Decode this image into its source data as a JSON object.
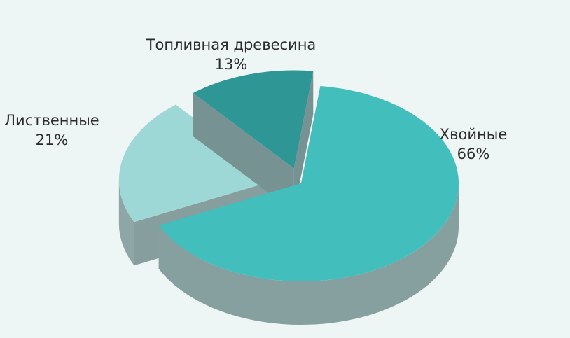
{
  "chart_data": {
    "type": "pie",
    "title": "",
    "slices": [
      {
        "name": "Хвойные",
        "value": 66,
        "value_label": "66%",
        "color": "#42bfbd",
        "side_color": "#86a0a0",
        "exploded": false
      },
      {
        "name": "Лиственные",
        "value": 21,
        "value_label": "21%",
        "color": "#9dd8d6",
        "side_color": "#8ea6a6",
        "exploded": true
      },
      {
        "name": "Топливная древесина",
        "value": 13,
        "value_label": "13%",
        "color": "#2e9796",
        "side_color": "#7d9a9a",
        "exploded": true
      }
    ]
  }
}
